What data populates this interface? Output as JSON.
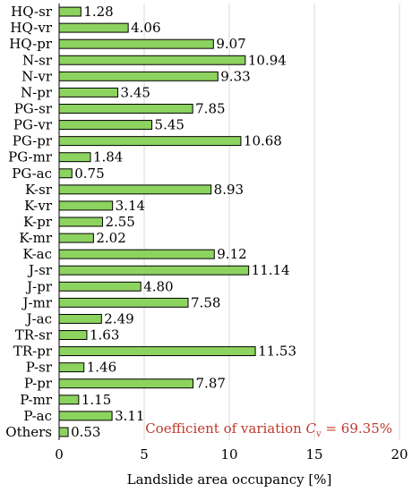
{
  "chart_data": {
    "type": "bar",
    "orientation": "horizontal",
    "categories": [
      "HQ-sr",
      "HQ-vr",
      "HQ-pr",
      "N-sr",
      "N-vr",
      "N-pr",
      "PG-sr",
      "PG-vr",
      "PG-pr",
      "PG-mr",
      "PG-ac",
      "K-sr",
      "K-vr",
      "K-pr",
      "K-mr",
      "K-ac",
      "J-sr",
      "J-pr",
      "J-mr",
      "J-ac",
      "TR-sr",
      "TR-pr",
      "P-sr",
      "P-pr",
      "P-mr",
      "P-ac",
      "Others"
    ],
    "values": [
      1.28,
      4.06,
      9.07,
      10.94,
      9.33,
      3.45,
      7.85,
      5.45,
      10.68,
      1.84,
      0.75,
      8.93,
      3.14,
      2.55,
      2.02,
      9.12,
      11.14,
      4.8,
      7.58,
      2.49,
      1.63,
      11.53,
      1.46,
      7.87,
      1.15,
      3.11,
      0.53
    ],
    "value_labels": [
      "1.28",
      "4.06",
      "9.07",
      "10.94",
      "9.33",
      "3.45",
      "7.85",
      "5.45",
      "10.68",
      "1.84",
      "0.75",
      "8.93",
      "3.14",
      "2.55",
      "2.02",
      "9.12",
      "11.14",
      "4.80",
      "7.58",
      "2.49",
      "1.63",
      "11.53",
      "1.46",
      "7.87",
      "1.15",
      "3.11",
      "0.53"
    ],
    "xlabel": "Landslide area occupancy [%]",
    "ylabel": "",
    "xlim": [
      0,
      20
    ],
    "xticks": [
      0,
      5,
      10,
      15,
      20
    ],
    "grid": "vertical",
    "bar_color": "#8dd35f",
    "annotation": {
      "prefix": "Coefficient of variation ",
      "symbol": "C",
      "subscript": "v",
      "suffix": " = 69.35%",
      "color": "#c0392b"
    }
  }
}
